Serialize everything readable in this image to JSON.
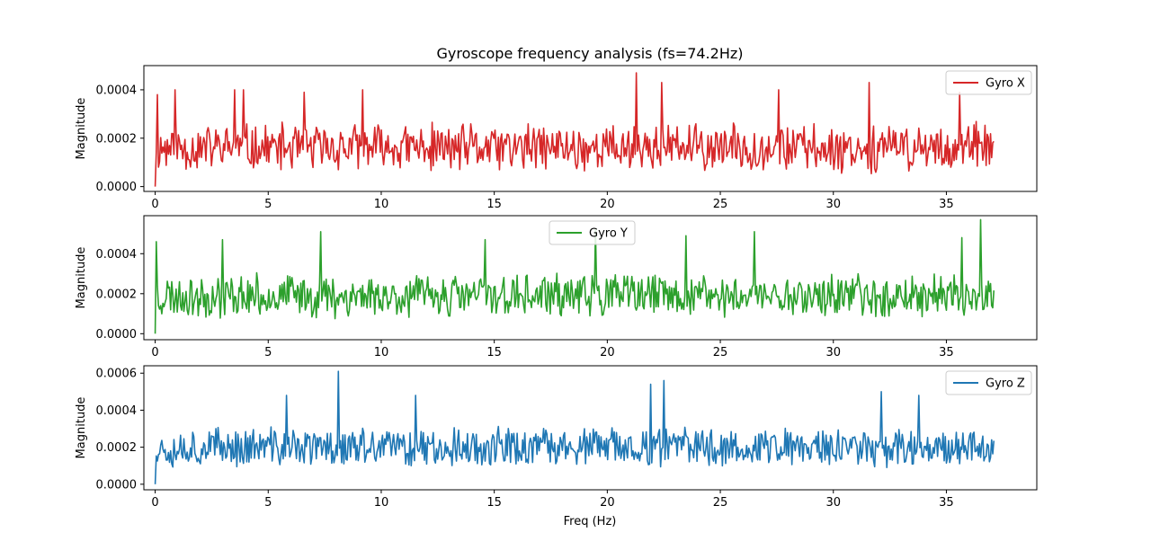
{
  "chart_data": {
    "type": "line",
    "title": "Gyroscope frequency analysis (fs=74.2Hz)",
    "xlabel": "Freq (Hz)",
    "shared_x_ticks": [
      "0",
      "5",
      "10",
      "15",
      "20",
      "25",
      "30",
      "35"
    ],
    "x_range": [
      0,
      37.1
    ],
    "panels": [
      {
        "series_name": "Gyro X",
        "ylabel": "Magnitude",
        "color": "#d62728",
        "ylim": [
          -2e-05,
          0.0005
        ],
        "y_ticks": [
          0.0,
          0.0002,
          0.0004
        ],
        "y_tick_labels": [
          "0.0000",
          "0.0002",
          "0.0004"
        ],
        "legend_position": "upper-right",
        "seed": 11,
        "noise_mean": 0.00016,
        "noise_amp": 0.00011,
        "peaks": [
          [
            0.1,
            0.00038
          ],
          [
            0.9,
            0.0004
          ],
          [
            3.5,
            0.0004
          ],
          [
            3.9,
            0.0004
          ],
          [
            6.6,
            0.00039
          ],
          [
            9.2,
            0.0004
          ],
          [
            21.3,
            0.00047
          ],
          [
            22.4,
            0.00043
          ],
          [
            27.6,
            0.0004
          ],
          [
            31.6,
            0.00043
          ],
          [
            35.6,
            0.00039
          ]
        ],
        "start_value": 0.0
      },
      {
        "series_name": "Gyro Y",
        "ylabel": "Magnitude",
        "color": "#2ca02c",
        "ylim": [
          -3e-05,
          0.00059
        ],
        "y_ticks": [
          0.0,
          0.0002,
          0.0004
        ],
        "y_tick_labels": [
          "0.0000",
          "0.0002",
          "0.0004"
        ],
        "legend_position": "upper-center",
        "seed": 23,
        "noise_mean": 0.00019,
        "noise_amp": 0.00012,
        "peaks": [
          [
            0.0,
            0.00046
          ],
          [
            3.0,
            0.00047
          ],
          [
            7.3,
            0.00051
          ],
          [
            14.6,
            0.00047
          ],
          [
            19.5,
            0.00052
          ],
          [
            23.5,
            0.00049
          ],
          [
            26.5,
            0.00051
          ],
          [
            35.7,
            0.00048
          ],
          [
            36.5,
            0.00057
          ]
        ],
        "start_value": 0.0
      },
      {
        "series_name": "Gyro Z",
        "ylabel": "Magnitude",
        "color": "#1f77b4",
        "ylim": [
          -3e-05,
          0.00064
        ],
        "y_ticks": [
          0.0,
          0.0002,
          0.0004,
          0.0006
        ],
        "y_tick_labels": [
          "0.0000",
          "0.0002",
          "0.0004",
          "0.0006"
        ],
        "legend_position": "upper-right",
        "seed": 37,
        "noise_mean": 0.0002,
        "noise_amp": 0.00012,
        "peaks": [
          [
            5.8,
            0.00048
          ],
          [
            8.1,
            0.00061
          ],
          [
            11.5,
            0.00048
          ],
          [
            21.9,
            0.00054
          ],
          [
            22.5,
            0.00056
          ],
          [
            32.1,
            0.0005
          ],
          [
            33.8,
            0.00048
          ]
        ],
        "start_value": 0.0
      }
    ]
  }
}
